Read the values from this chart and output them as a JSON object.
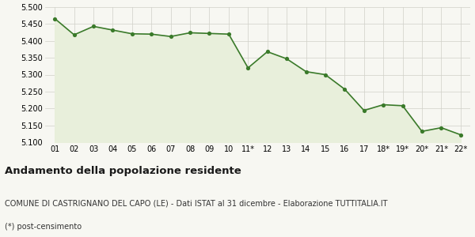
{
  "x_labels": [
    "01",
    "02",
    "03",
    "04",
    "05",
    "06",
    "07",
    "08",
    "09",
    "10",
    "11*",
    "12",
    "13",
    "14",
    "15",
    "16",
    "17",
    "18*",
    "19*",
    "20*",
    "21*",
    "22*"
  ],
  "y_values": [
    5466,
    5418,
    5443,
    5432,
    5421,
    5420,
    5413,
    5424,
    5422,
    5420,
    5320,
    5368,
    5347,
    5309,
    5300,
    5257,
    5194,
    5211,
    5208,
    5132,
    5143,
    5122
  ],
  "line_color": "#3a7a2a",
  "fill_color": "#e8efdb",
  "marker_color": "#3a7a2a",
  "bg_color": "#f7f7f2",
  "grid_color": "#d0d0c8",
  "ylim": [
    5100,
    5500
  ],
  "yticks": [
    5100,
    5150,
    5200,
    5250,
    5300,
    5350,
    5400,
    5450,
    5500
  ],
  "title": "Andamento della popolazione residente",
  "subtitle": "COMUNE DI CASTRIGNANO DEL CAPO (LE) - Dati ISTAT al 31 dicembre - Elaborazione TUTTITALIA.IT",
  "footnote": "(*) post-censimento",
  "title_fontsize": 9.5,
  "subtitle_fontsize": 7,
  "footnote_fontsize": 7
}
